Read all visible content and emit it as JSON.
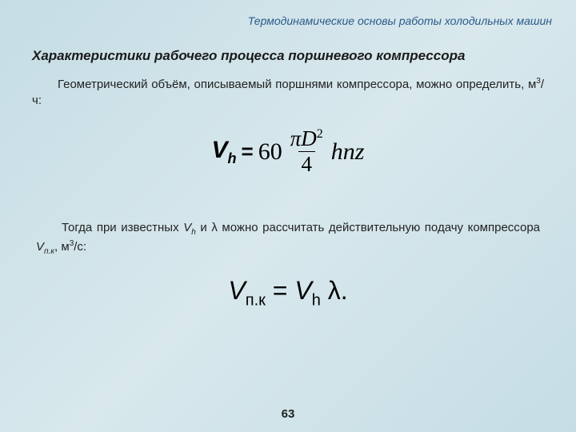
{
  "header": "Термодинамические основы работы холодильных машин",
  "title": "Характеристики рабочего процесса поршневого компрессора",
  "para1_a": "Геометрический объём, описываемый поршнями компрессора, можно определить, м",
  "para1_b": "/ч:",
  "f1": {
    "V": "V",
    "h": "h",
    "eq": "=",
    "sixty": "60",
    "pi": "π",
    "D": "D",
    "two": "2",
    "four": "4",
    "hnz": "hnz"
  },
  "para2_a": "Тогда при известных ",
  "para2_vh_V": "V",
  "para2_vh_h": "h",
  "para2_b": " и λ можно рассчитать действительную подачу компрессора ",
  "para2_vpk_V": "V",
  "para2_vpk_sub": "п.к",
  "para2_c": ", м",
  "para2_d": "/с:",
  "f2": {
    "V1": "V",
    "sub1": "п.к",
    "eq": " = ",
    "V2": "V",
    "sub2": "h",
    "lam": " λ.",
    "sp": " "
  },
  "pagenum": "63",
  "sup3": "3"
}
